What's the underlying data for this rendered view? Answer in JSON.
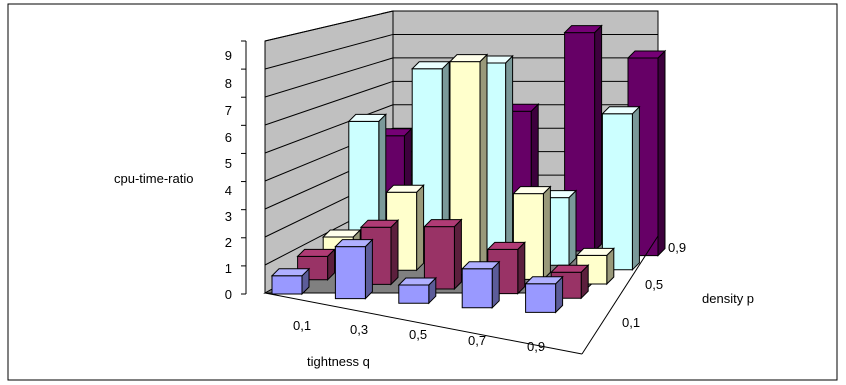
{
  "chart_data": {
    "type": "bar",
    "subtype": "3d-column",
    "title": "",
    "zlabel": "cpu-time-ratio",
    "xlabel": "tightness q",
    "ylabel": "density p",
    "x_categories": [
      "0,1",
      "0,3",
      "0,5",
      "0,7",
      "0,9"
    ],
    "y_categories": [
      "0,1",
      "0,5",
      "0,9"
    ],
    "zlim": [
      0,
      9
    ],
    "z_ticks": [
      "0",
      "1",
      "2",
      "3",
      "4",
      "5",
      "6",
      "7",
      "8",
      "9"
    ],
    "series": [
      {
        "values": [
          0.7,
          2.0,
          0.7,
          1.5,
          1.1
        ],
        "color": "#9999ff"
      },
      {
        "values": [
          0.9,
          2.2,
          2.4,
          1.7,
          1.0
        ],
        "color": "#993366"
      },
      {
        "values": [
          1.1,
          3.0,
          8.2,
          3.3,
          1.1
        ],
        "color": "#ffffcc"
      },
      {
        "values": [
          5.0,
          7.2,
          7.6,
          2.6,
          6.0
        ],
        "color": "#ccffff"
      },
      {
        "values": [
          3.9,
          5.1,
          5.2,
          8.4,
          7.6
        ],
        "color": "#660066"
      }
    ],
    "grid": true,
    "legend": "none"
  }
}
